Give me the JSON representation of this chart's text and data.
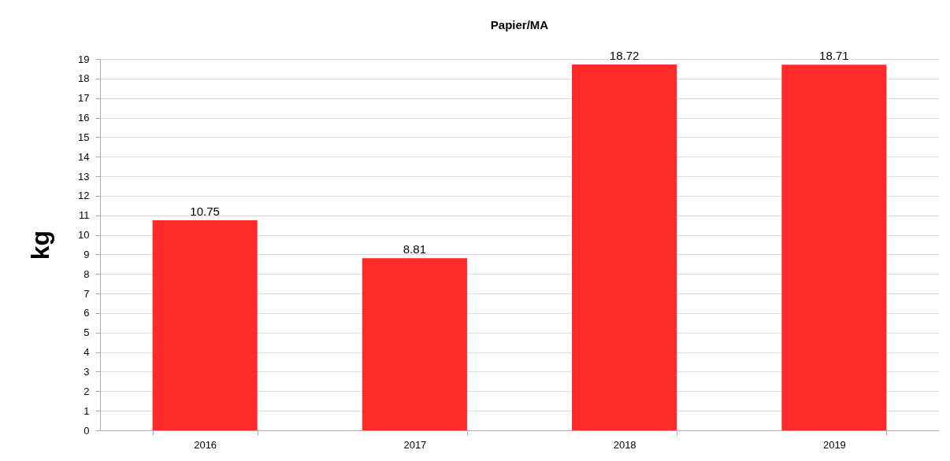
{
  "chart_data": {
    "type": "bar",
    "title": "Papier/MA",
    "ylabel": "kg",
    "categories": [
      "2016",
      "2017",
      "2018",
      "2019"
    ],
    "values": [
      10.75,
      8.81,
      18.72,
      18.71
    ],
    "color": "#ff2a2a",
    "ylim": [
      0,
      19
    ],
    "yticks": [
      0,
      1,
      2,
      3,
      4,
      5,
      6,
      7,
      8,
      9,
      10,
      11,
      12,
      13,
      14,
      15,
      16,
      17,
      18,
      19
    ],
    "grid": "y",
    "data_labels": true
  }
}
